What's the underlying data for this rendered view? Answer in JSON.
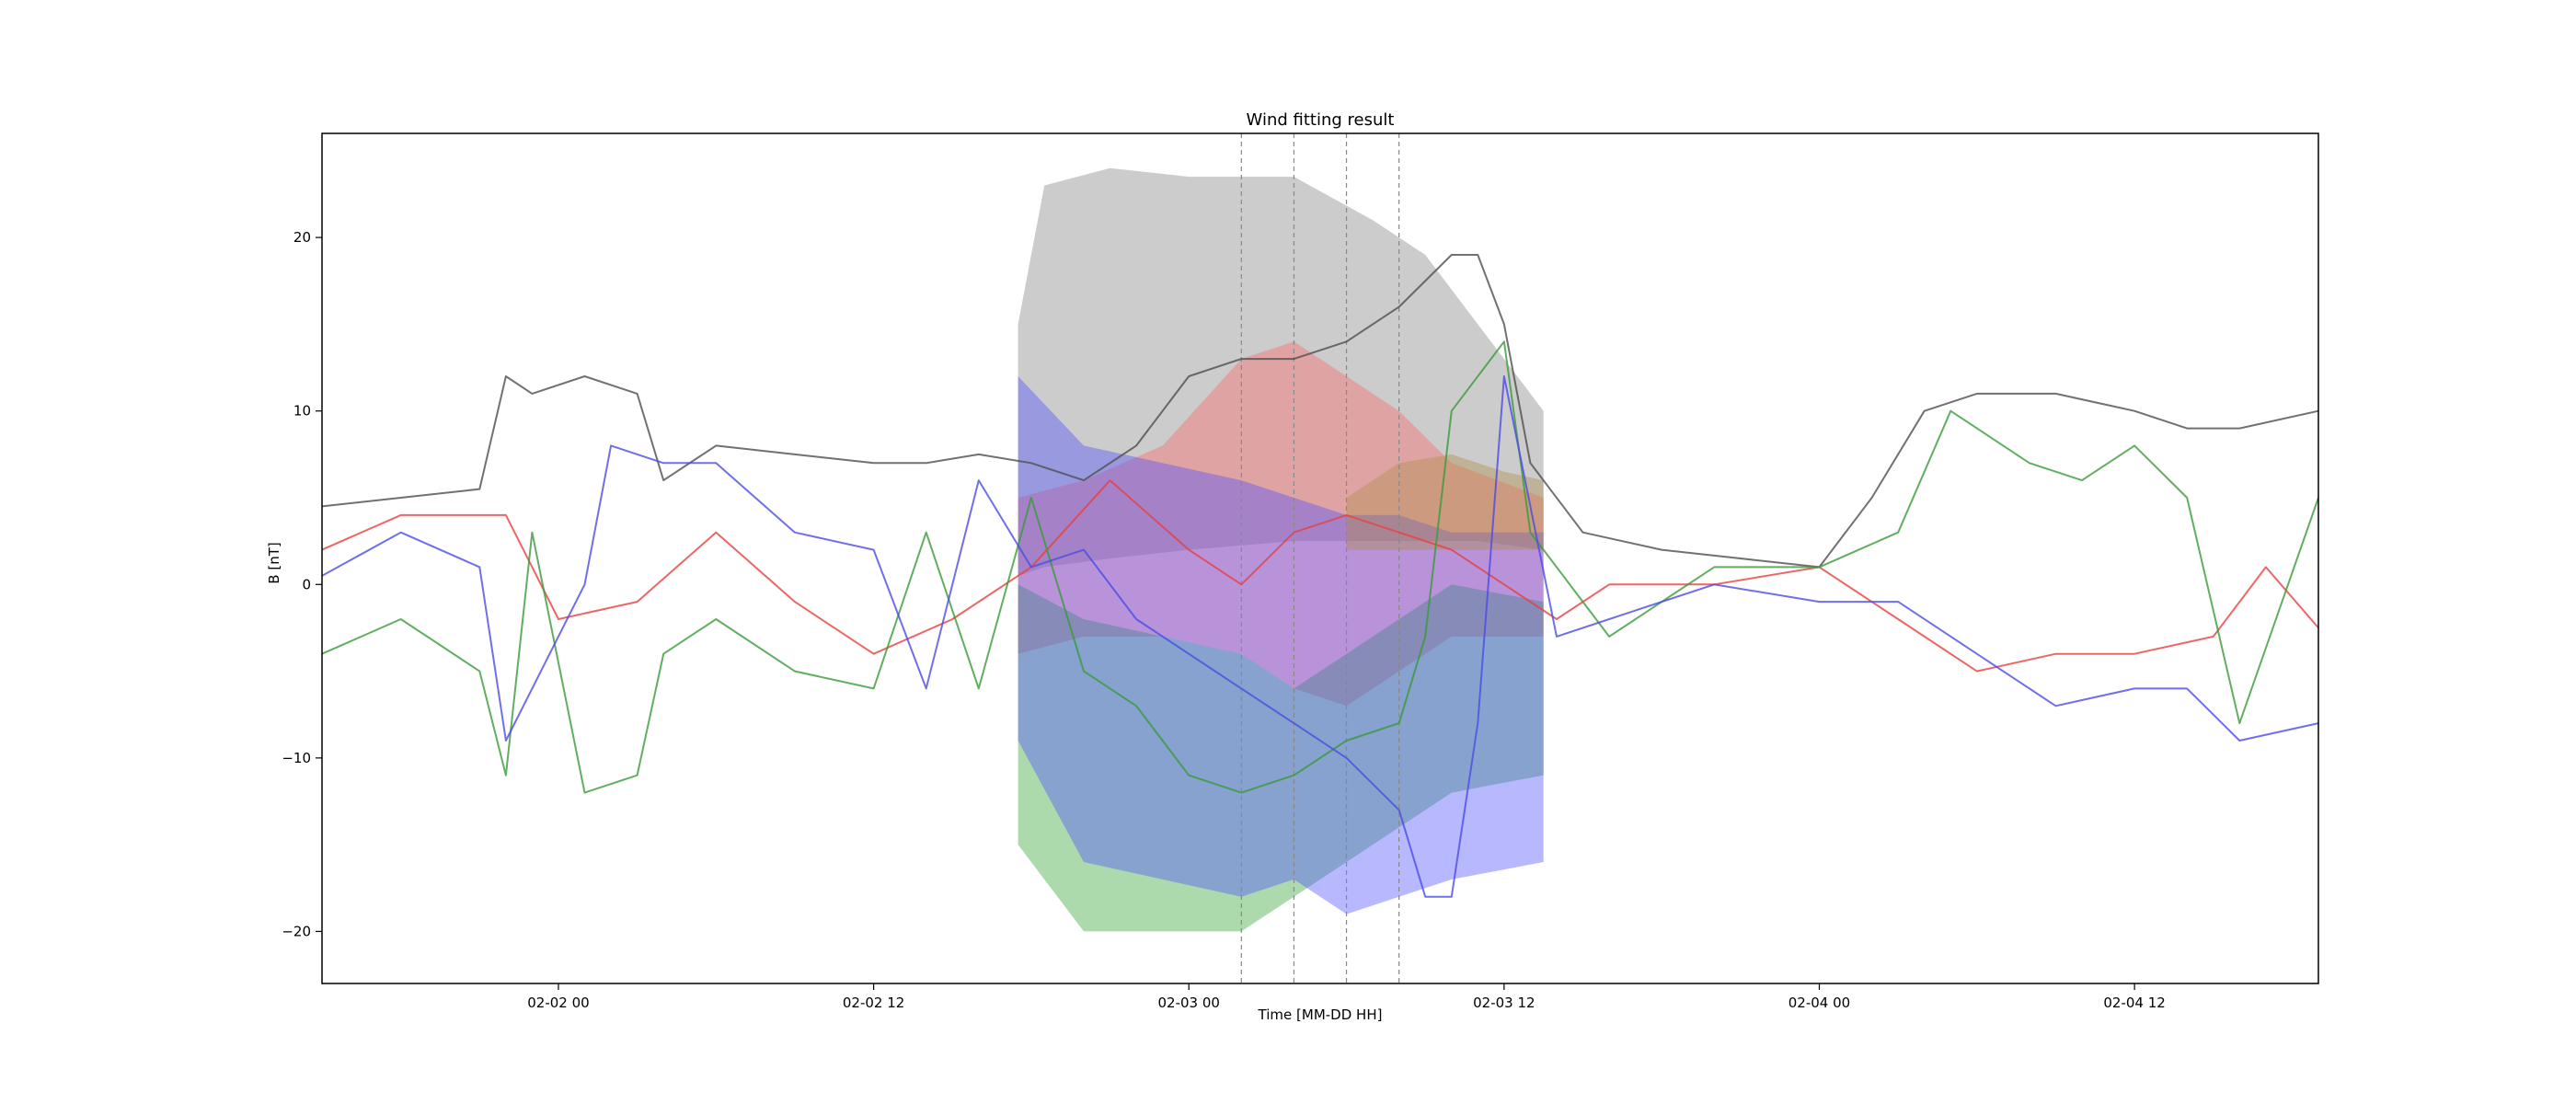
{
  "chart_data": {
    "type": "line",
    "title": "Wind fitting result",
    "xlabel": "Time [MM-DD HH]",
    "ylabel": "B [nT]",
    "xlim": [
      "2024-02-01 15:00",
      "2024-02-04 19:00"
    ],
    "ylim": [
      -23,
      26
    ],
    "x_ticks": [
      {
        "value": "2024-02-02 00:00",
        "label": "02-02 00"
      },
      {
        "value": "2024-02-02 12:00",
        "label": "02-02 12"
      },
      {
        "value": "2024-02-03 00:00",
        "label": "02-03 00"
      },
      {
        "value": "2024-02-03 12:00",
        "label": "02-03 12"
      },
      {
        "value": "2024-02-04 00:00",
        "label": "02-04 00"
      },
      {
        "value": "2024-02-04 12:00",
        "label": "02-04 12"
      }
    ],
    "y_ticks": [
      {
        "value": -20,
        "label": "−20"
      },
      {
        "value": -10,
        "label": "−10"
      },
      {
        "value": 0,
        "label": "0"
      },
      {
        "value": 10,
        "label": "10"
      },
      {
        "value": 20,
        "label": "20"
      }
    ],
    "grid": false,
    "legend": "none",
    "vertical_lines": [
      "2024-02-03 02:00",
      "2024-02-03 04:00",
      "2024-02-03 06:00",
      "2024-02-03 08:00"
    ],
    "bands": [
      {
        "color": "#808080",
        "x": [
          "2024-02-02 17:30",
          "2024-02-02 18:30",
          "2024-02-02 21:00",
          "2024-02-03 00:00",
          "2024-02-03 04:00",
          "2024-02-03 07:00",
          "2024-02-03 09:00",
          "2024-02-03 11:00",
          "2024-02-03 13:30"
        ],
        "upper": [
          15,
          23,
          24,
          23.5,
          23.5,
          21,
          19,
          15,
          10
        ],
        "lower": [
          0.5,
          1,
          1.5,
          2,
          2.5,
          2.5,
          2.5,
          2.5,
          2
        ]
      },
      {
        "color": "#ff6666",
        "x": [
          "2024-02-02 17:30",
          "2024-02-02 20:00",
          "2024-02-02 23:00",
          "2024-02-03 02:00",
          "2024-02-03 04:00",
          "2024-02-03 06:00",
          "2024-02-03 08:00",
          "2024-02-03 10:00",
          "2024-02-03 13:30"
        ],
        "upper": [
          5,
          6,
          8,
          13,
          14,
          12,
          10,
          7,
          5
        ],
        "lower": [
          -4,
          -3,
          -3,
          -4,
          -6,
          -7,
          -5,
          -3,
          -3
        ]
      },
      {
        "color": "#33a333",
        "x": [
          "2024-02-02 17:30",
          "2024-02-02 20:00",
          "2024-02-02 23:00",
          "2024-02-03 02:00",
          "2024-02-03 04:00",
          "2024-02-03 06:00",
          "2024-02-03 08:00",
          "2024-02-03 10:00",
          "2024-02-03 13:30"
        ],
        "upper": [
          0,
          -2,
          -3,
          -4,
          -6,
          -4,
          -2,
          0,
          -1
        ],
        "lower": [
          -15,
          -20,
          -20,
          -20,
          -18,
          -16,
          -14,
          -12,
          -11
        ]
      },
      {
        "color": "#4d4dff",
        "x": [
          "2024-02-02 17:30",
          "2024-02-02 20:00",
          "2024-02-02 23:00",
          "2024-02-03 02:00",
          "2024-02-03 04:00",
          "2024-02-03 06:00",
          "2024-02-03 08:00",
          "2024-02-03 10:00",
          "2024-02-03 13:30"
        ],
        "upper": [
          12,
          8,
          7,
          6,
          5,
          4,
          4,
          3,
          3
        ],
        "lower": [
          -9,
          -16,
          -17,
          -18,
          -17,
          -19,
          -18,
          -17,
          -16
        ]
      },
      {
        "color": "#b08d45",
        "x": [
          "2024-02-03 06:00",
          "2024-02-03 08:00",
          "2024-02-03 10:00",
          "2024-02-03 12:00",
          "2024-02-03 13:30"
        ],
        "upper": [
          5,
          7,
          7.5,
          6.5,
          6
        ],
        "lower": [
          2,
          2,
          2,
          2,
          2
        ]
      }
    ],
    "series": [
      {
        "color": "#4d4d4d",
        "x": [
          "2024-02-01 15:00",
          "2024-02-01 18:00",
          "2024-02-01 21:00",
          "2024-02-01 22:00",
          "2024-02-01 23:00",
          "2024-02-02 01:00",
          "2024-02-02 03:00",
          "2024-02-02 04:00",
          "2024-02-02 06:00",
          "2024-02-02 09:00",
          "2024-02-02 12:00",
          "2024-02-02 14:00",
          "2024-02-02 16:00",
          "2024-02-02 18:00",
          "2024-02-02 20:00",
          "2024-02-02 22:00",
          "2024-02-03 00:00",
          "2024-02-03 02:00",
          "2024-02-03 04:00",
          "2024-02-03 06:00",
          "2024-02-03 08:00",
          "2024-02-03 10:00",
          "2024-02-03 11:00",
          "2024-02-03 12:00",
          "2024-02-03 13:00",
          "2024-02-03 15:00",
          "2024-02-03 18:00",
          "2024-02-03 21:00",
          "2024-02-04 00:00",
          "2024-02-04 02:00",
          "2024-02-04 04:00",
          "2024-02-04 06:00",
          "2024-02-04 09:00",
          "2024-02-04 12:00",
          "2024-02-04 14:00",
          "2024-02-04 16:00",
          "2024-02-04 19:00"
        ],
        "y": [
          4.5,
          5,
          5.5,
          12,
          11,
          12,
          11,
          6,
          8,
          7.5,
          7,
          7,
          7.5,
          7,
          6,
          8,
          12,
          13,
          13,
          14,
          16,
          19,
          19,
          15,
          7,
          3,
          2,
          1.5,
          1,
          5,
          10,
          11,
          11,
          10,
          9,
          9,
          10
        ]
      },
      {
        "color": "#e84040",
        "x": [
          "2024-02-01 15:00",
          "2024-02-01 18:00",
          "2024-02-01 22:00",
          "2024-02-02 00:00",
          "2024-02-02 03:00",
          "2024-02-02 06:00",
          "2024-02-02 09:00",
          "2024-02-02 12:00",
          "2024-02-02 15:00",
          "2024-02-02 18:00",
          "2024-02-02 21:00",
          "2024-02-03 00:00",
          "2024-02-03 02:00",
          "2024-02-03 04:00",
          "2024-02-03 06:00",
          "2024-02-03 08:00",
          "2024-02-03 10:00",
          "2024-02-03 12:00",
          "2024-02-03 14:00",
          "2024-02-03 16:00",
          "2024-02-03 20:00",
          "2024-02-04 00:00",
          "2024-02-04 03:00",
          "2024-02-04 06:00",
          "2024-02-04 09:00",
          "2024-02-04 12:00",
          "2024-02-04 15:00",
          "2024-02-04 17:00",
          "2024-02-04 19:00"
        ],
        "y": [
          2,
          4,
          4,
          -2,
          -1,
          3,
          -1,
          -4,
          -2,
          1,
          6,
          2,
          0,
          3,
          4,
          3,
          2,
          0,
          -2,
          0,
          0,
          1,
          -2,
          -5,
          -4,
          -4,
          -3,
          1,
          -2.5
        ]
      },
      {
        "color": "#3a9a3a",
        "x": [
          "2024-02-01 15:00",
          "2024-02-01 18:00",
          "2024-02-01 21:00",
          "2024-02-01 22:00",
          "2024-02-01 23:00",
          "2024-02-02 01:00",
          "2024-02-02 03:00",
          "2024-02-02 04:00",
          "2024-02-02 06:00",
          "2024-02-02 09:00",
          "2024-02-02 12:00",
          "2024-02-02 14:00",
          "2024-02-02 16:00",
          "2024-02-02 18:00",
          "2024-02-02 20:00",
          "2024-02-02 22:00",
          "2024-02-03 00:00",
          "2024-02-03 02:00",
          "2024-02-03 04:00",
          "2024-02-03 06:00",
          "2024-02-03 08:00",
          "2024-02-03 09:00",
          "2024-02-03 10:00",
          "2024-02-03 12:00",
          "2024-02-03 13:00",
          "2024-02-03 16:00",
          "2024-02-03 20:00",
          "2024-02-04 00:00",
          "2024-02-04 03:00",
          "2024-02-04 05:00",
          "2024-02-04 08:00",
          "2024-02-04 10:00",
          "2024-02-04 12:00",
          "2024-02-04 14:00",
          "2024-02-04 16:00",
          "2024-02-04 19:00"
        ],
        "y": [
          -4,
          -2,
          -5,
          -11,
          3,
          -12,
          -11,
          -4,
          -2,
          -5,
          -6,
          3,
          -6,
          5,
          -5,
          -7,
          -11,
          -12,
          -11,
          -9,
          -8,
          -3,
          10,
          14,
          3,
          -3,
          1,
          1,
          3,
          10,
          7,
          6,
          8,
          5,
          -8,
          5
        ]
      },
      {
        "color": "#4b4be6",
        "x": [
          "2024-02-01 15:00",
          "2024-02-01 18:00",
          "2024-02-01 21:00",
          "2024-02-01 22:00",
          "2024-02-02 01:00",
          "2024-02-02 02:00",
          "2024-02-02 04:00",
          "2024-02-02 06:00",
          "2024-02-02 09:00",
          "2024-02-02 12:00",
          "2024-02-02 14:00",
          "2024-02-02 16:00",
          "2024-02-02 18:00",
          "2024-02-02 20:00",
          "2024-02-02 22:00",
          "2024-02-03 00:00",
          "2024-02-03 02:00",
          "2024-02-03 04:00",
          "2024-02-03 06:00",
          "2024-02-03 08:00",
          "2024-02-03 09:00",
          "2024-02-03 10:00",
          "2024-02-03 11:00",
          "2024-02-03 12:00",
          "2024-02-03 14:00",
          "2024-02-03 16:00",
          "2024-02-03 20:00",
          "2024-02-04 00:00",
          "2024-02-04 03:00",
          "2024-02-04 06:00",
          "2024-02-04 09:00",
          "2024-02-04 12:00",
          "2024-02-04 14:00",
          "2024-02-04 16:00",
          "2024-02-04 19:00"
        ],
        "y": [
          0.5,
          3,
          1,
          -9,
          0,
          8,
          7,
          7,
          3,
          2,
          -6,
          6,
          1,
          2,
          -2,
          -4,
          -6,
          -8,
          -10,
          -13,
          -18,
          -18,
          -8,
          12,
          -3,
          -2,
          0,
          -1,
          -1,
          -4,
          -7,
          -6,
          -6,
          -9,
          -8
        ]
      }
    ]
  }
}
